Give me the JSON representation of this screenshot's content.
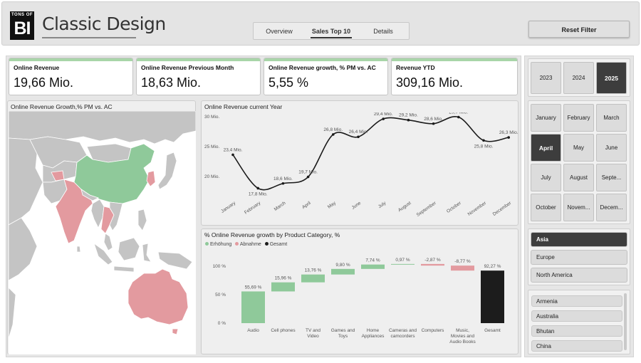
{
  "header": {
    "logo_top": "TONS OF",
    "logo_main": "BI",
    "title_bold": "Classic",
    "title_light": "Design",
    "tabs": [
      {
        "label": "Overview",
        "active": false
      },
      {
        "label": "Sales Top 10",
        "active": true
      },
      {
        "label": "Details",
        "active": false
      }
    ],
    "reset_label": "Reset Filter"
  },
  "kpis": [
    {
      "label": "Online Revenue",
      "value": "19,66 Mio."
    },
    {
      "label": "Online Revenue Previous Month",
      "value": "18,63 Mio."
    },
    {
      "label": "Online Revenue growth, % PM vs. AC",
      "value": "5,55 %"
    },
    {
      "label": "Revenue YTD",
      "value": "309,16 Mio."
    }
  ],
  "map": {
    "title": "Online Revenue Growth,% PM vs. AC",
    "colors": {
      "land": "#c4c4c4",
      "sea": "#ffffff",
      "increase": "#8fc99a",
      "decrease": "#e39a9f"
    }
  },
  "line_chart": {
    "title": "Online Revenue current Year",
    "ytick_labels": [
      "30 Mio.",
      "25 Mio.",
      "20 Mio."
    ]
  },
  "waterfall": {
    "title": "% Online Revenue growth by Product Category, %",
    "legend": [
      {
        "label": "Erhöhung",
        "color": "#8fc99a"
      },
      {
        "label": "Abnahme",
        "color": "#e39a9f"
      },
      {
        "label": "Gesamt",
        "color": "#1c1c1c"
      }
    ],
    "ytick_labels": [
      "100 %",
      "50 %",
      "0 %"
    ]
  },
  "chart_data": [
    {
      "type": "line",
      "title": "Online Revenue current Year",
      "categories": [
        "January",
        "February",
        "March",
        "April",
        "May",
        "June",
        "July",
        "August",
        "September",
        "October",
        "November",
        "December"
      ],
      "values": [
        23.4,
        17.8,
        18.6,
        19.7,
        26.8,
        26.4,
        29.4,
        29.2,
        28.6,
        29.7,
        25.8,
        26.3
      ],
      "data_labels": [
        "23,4 Mio.",
        "17,8 Mio.",
        "18,6 Mio.",
        "19,7 Mio.",
        "26,8 Mio.",
        "26,4 Mio.",
        "29,4 Mio.",
        "29,2 Mio.",
        "28,6 Mio.",
        "29,7 Mio.",
        "25,8 Mio.",
        "26,3 Mio."
      ],
      "ylim": [
        16,
        30
      ]
    },
    {
      "type": "bar",
      "subtype": "waterfall",
      "title": "% Online Revenue growth by Product Category, %",
      "categories": [
        "Audio",
        "Cell phones",
        "TV and Video",
        "Games and Toys",
        "Home Appliances",
        "Cameras and camcorders",
        "Computers",
        "Music, Movies and Audio Books",
        "Gesamt"
      ],
      "values": [
        55.69,
        15.96,
        13.76,
        9.8,
        7.74,
        0.97,
        -2.87,
        -8.77,
        92.27
      ],
      "data_labels": [
        "55,69 %",
        "15,96 %",
        "13,76 %",
        "9,80 %",
        "7,74 %",
        "0,97 %",
        "-2,87 %",
        "-8,77 %",
        "92,27 %"
      ],
      "kinds": [
        "increase",
        "increase",
        "increase",
        "increase",
        "increase",
        "increase",
        "decrease",
        "decrease",
        "total"
      ],
      "ylim": [
        0,
        100
      ]
    }
  ],
  "slicers": {
    "years": [
      {
        "label": "2023",
        "selected": false
      },
      {
        "label": "2024",
        "selected": false
      },
      {
        "label": "2025",
        "selected": true
      }
    ],
    "months": [
      {
        "label": "January",
        "selected": false
      },
      {
        "label": "February",
        "selected": false
      },
      {
        "label": "March",
        "selected": false
      },
      {
        "label": "April",
        "selected": true
      },
      {
        "label": "May",
        "selected": false
      },
      {
        "label": "June",
        "selected": false
      },
      {
        "label": "July",
        "selected": false
      },
      {
        "label": "August",
        "selected": false
      },
      {
        "label": "Septe...",
        "selected": false
      },
      {
        "label": "October",
        "selected": false
      },
      {
        "label": "Novem...",
        "selected": false
      },
      {
        "label": "Decem...",
        "selected": false
      }
    ],
    "regions": [
      {
        "label": "Asia",
        "selected": true
      },
      {
        "label": "Europe",
        "selected": false
      },
      {
        "label": "North America",
        "selected": false
      }
    ],
    "countries": [
      "Armenia",
      "Australia",
      "Bhutan",
      "China"
    ]
  }
}
